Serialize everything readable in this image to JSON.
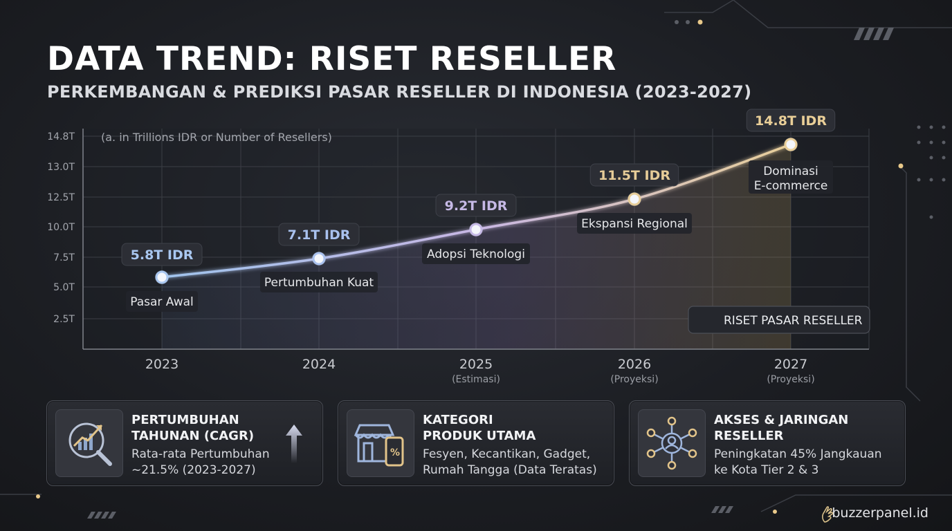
{
  "header": {
    "title": "DATA TREND: RISET RESELLER",
    "subtitle": "PERKEMBANGAN & PREDIKSI PASAR RESELLER DI INDONESIA (2023-2027)"
  },
  "chart_data": {
    "type": "line",
    "note": "(a. in Trillions IDR or Number of Resellers)",
    "y_ticks": [
      "14.8T",
      "13.0T",
      "12.5T",
      "10.0T",
      "7.5T",
      "5.0T",
      "2.5T"
    ],
    "categories": [
      "2023",
      "2024",
      "2025",
      "2026",
      "2027"
    ],
    "category_sublabels": [
      "",
      "",
      "(Estimasi)",
      "(Proyeksi)",
      "(Proyeksi)"
    ],
    "series": [
      {
        "name": "RISET PASAR RESELLER",
        "values": [
          5.8,
          7.1,
          9.2,
          11.5,
          14.8
        ]
      }
    ],
    "value_labels": [
      "5.8T IDR",
      "7.1T IDR",
      "9.2T IDR",
      "11.5T IDR",
      "14.8T IDR"
    ],
    "annotations": [
      "Pasar Awal",
      "Pertumbuhan Kuat",
      "Adopsi Teknologi",
      "Ekspansi Regional",
      "Dominasi\nE-commerce"
    ],
    "ylim": [
      0,
      15
    ],
    "grid": true,
    "legend_position": "bottom-right",
    "colors": {
      "start": "#9fc3ec",
      "mid": "#c8b7e4",
      "end": "#e8cf9a",
      "label_start": "#9fc0ee",
      "label_end": "#e9cf98"
    }
  },
  "cards": [
    {
      "icon": "growth-chart-magnifier-icon",
      "title": "PERTUMBUHAN\nTAHUNAN (CAGR)",
      "text": "Rata-rata Pertumbuhan\n~21.5% (2023-2027)",
      "extra_icon": "up-arrow-icon"
    },
    {
      "icon": "store-smartphone-icon",
      "title": "KATEGORI\nPRODUK UTAMA",
      "text": "Fesyen, Kecantikan, Gadget,\nRumah Tangga (Data Teratas)"
    },
    {
      "icon": "network-people-icon",
      "title": "AKSES & JARINGAN\nRESELLER",
      "text": "Peningkatan 45% Jangkauan\nke Kota Tier 2 & 3"
    }
  ],
  "footer": {
    "brand": "buzzerpanel.id",
    "brand_icon": "hand-logo-icon"
  }
}
